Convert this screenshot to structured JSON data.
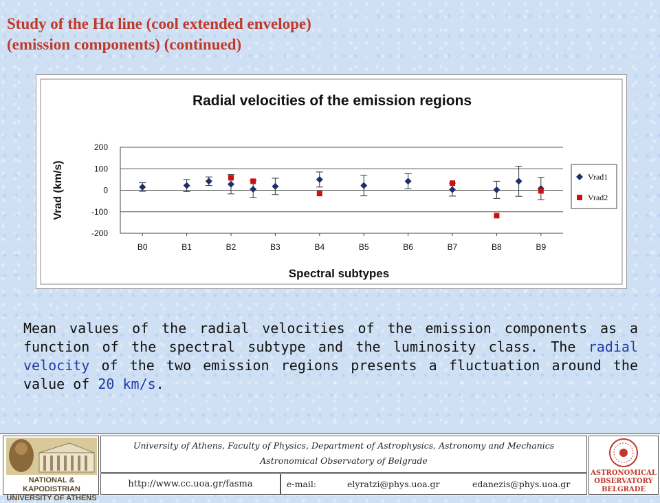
{
  "slide": {
    "title_line1": "Study of the Hα line (cool extended envelope)",
    "title_line2": "(emission components) (continued)",
    "caption_part1": "Mean values of the radial velocities of the emission components as a function of the spectral subtype and the luminosity class. The ",
    "caption_highlight1": "radial velocity",
    "caption_part2": " of the two emission regions presents a fluctuation around the value of ",
    "caption_highlight2": "20 km/s",
    "caption_part3": ".",
    "highlight_color": "#1f3ca8",
    "title_color": "#c0392b"
  },
  "chart_data": {
    "type": "scatter",
    "title": "Radial velocities of the emission regions",
    "xlabel": "Spectral subtypes",
    "ylabel": "Vrad (km/s)",
    "categories": [
      "B0",
      "B1",
      "B2",
      "B3",
      "B4",
      "B5",
      "B6",
      "B7",
      "B8",
      "B9"
    ],
    "ylim": [
      -200,
      200
    ],
    "yticks": [
      200,
      100,
      0,
      -100,
      -200
    ],
    "grid": true,
    "legend_position": "right",
    "series": [
      {
        "name": "Vrad1",
        "marker": "diamond",
        "color": "#1f2f6b",
        "points": [
          {
            "x": 0.0,
            "y": 15,
            "err": 20
          },
          {
            "x": 1.0,
            "y": 22,
            "err": 28
          },
          {
            "x": 1.5,
            "y": 42,
            "err": 20
          },
          {
            "x": 2.0,
            "y": 28,
            "err": 45
          },
          {
            "x": 2.5,
            "y": 5,
            "err": 40
          },
          {
            "x": 3.0,
            "y": 18,
            "err": 38
          },
          {
            "x": 4.0,
            "y": 50,
            "err": 35
          },
          {
            "x": 5.0,
            "y": 22,
            "err": 48
          },
          {
            "x": 6.0,
            "y": 42,
            "err": 35
          },
          {
            "x": 7.0,
            "y": 3,
            "err": 30
          },
          {
            "x": 8.0,
            "y": 2,
            "err": 40
          },
          {
            "x": 8.5,
            "y": 42,
            "err": 70
          },
          {
            "x": 9.0,
            "y": 8,
            "err": 52
          }
        ]
      },
      {
        "name": "Vrad2",
        "marker": "square",
        "color": "#cc1111",
        "points": [
          {
            "x": 2.0,
            "y": 58
          },
          {
            "x": 2.5,
            "y": 42
          },
          {
            "x": 4.0,
            "y": -15
          },
          {
            "x": 7.0,
            "y": 33
          },
          {
            "x": 8.0,
            "y": -118
          },
          {
            "x": 9.0,
            "y": -3
          }
        ]
      }
    ]
  },
  "footer": {
    "uoa_logo_line1": "NATIONAL & KAPODISTRIAN",
    "uoa_logo_line2": "UNIVERSITY OF ATHENS",
    "affiliation_line1": "University of Athens, Faculty of Physics, Department of Astrophysics, Astronomy and Mechanics",
    "affiliation_line2": "Astronomical Observatory of Belgrade",
    "url": "http://www.cc.uoa.gr/fasma",
    "email_label": "e-mail:",
    "email1": "elyratzi@phys.uoa.gr",
    "email2": "edanezis@phys.uoa.gr",
    "obs_logo_line1": "ASTRONOMICAL",
    "obs_logo_line2": "OBSERVATORY",
    "obs_logo_line3": "BELGRADE"
  }
}
